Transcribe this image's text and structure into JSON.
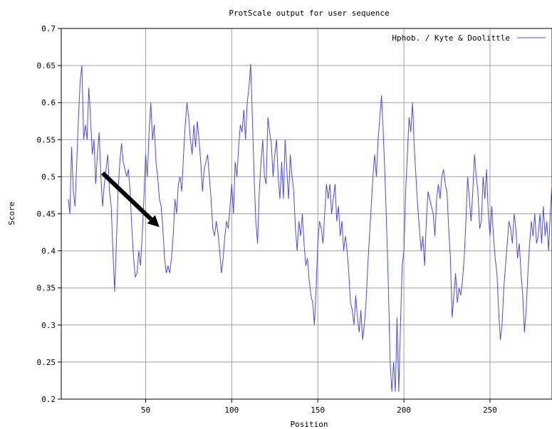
{
  "chart_data": {
    "type": "line",
    "title": "ProtScale output for user sequence",
    "xlabel": "Position",
    "ylabel": "Score",
    "xlim": [
      1,
      286
    ],
    "ylim": [
      0.2,
      0.7
    ],
    "xticks": [
      50,
      100,
      150,
      200,
      250
    ],
    "yticks": [
      0.2,
      0.25,
      0.3,
      0.35,
      0.4,
      0.45,
      0.5,
      0.55,
      0.6,
      0.65,
      0.7
    ],
    "ytick_labels": [
      "0.2",
      "0.25",
      "0.3",
      "0.35",
      "0.4",
      "0.45",
      "0.5",
      "0.55",
      "0.6",
      "0.65",
      "0.7"
    ],
    "grid": true,
    "legend_position": "top-right",
    "series": [
      {
        "name": "Hphob. / Kyte & Doolittle",
        "color": "#4a4ae8",
        "points": [
          [
            5,
            0.47
          ],
          [
            6,
            0.45
          ],
          [
            7,
            0.54
          ],
          [
            8,
            0.48
          ],
          [
            9,
            0.46
          ],
          [
            10,
            0.52
          ],
          [
            11,
            0.58
          ],
          [
            12,
            0.63
          ],
          [
            13,
            0.65
          ],
          [
            14,
            0.55
          ],
          [
            15,
            0.57
          ],
          [
            16,
            0.55
          ],
          [
            17,
            0.62
          ],
          [
            18,
            0.58
          ],
          [
            19,
            0.53
          ],
          [
            20,
            0.55
          ],
          [
            21,
            0.49
          ],
          [
            22,
            0.53
          ],
          [
            23,
            0.56
          ],
          [
            24,
            0.5
          ],
          [
            25,
            0.46
          ],
          [
            26,
            0.49
          ],
          [
            27,
            0.51
          ],
          [
            28,
            0.53
          ],
          [
            29,
            0.48
          ],
          [
            30,
            0.46
          ],
          [
            31,
            0.4
          ],
          [
            32,
            0.345
          ],
          [
            33,
            0.41
          ],
          [
            34,
            0.48
          ],
          [
            35,
            0.52
          ],
          [
            36,
            0.545
          ],
          [
            37,
            0.52
          ],
          [
            38,
            0.51
          ],
          [
            39,
            0.5
          ],
          [
            40,
            0.51
          ],
          [
            41,
            0.48
          ],
          [
            42,
            0.43
          ],
          [
            43,
            0.39
          ],
          [
            44,
            0.365
          ],
          [
            45,
            0.37
          ],
          [
            46,
            0.4
          ],
          [
            47,
            0.38
          ],
          [
            48,
            0.42
          ],
          [
            49,
            0.47
          ],
          [
            50,
            0.53
          ],
          [
            51,
            0.5
          ],
          [
            52,
            0.56
          ],
          [
            53,
            0.6
          ],
          [
            54,
            0.55
          ],
          [
            55,
            0.57
          ],
          [
            56,
            0.52
          ],
          [
            57,
            0.5
          ],
          [
            58,
            0.47
          ],
          [
            59,
            0.46
          ],
          [
            60,
            0.43
          ],
          [
            61,
            0.39
          ],
          [
            62,
            0.37
          ],
          [
            63,
            0.38
          ],
          [
            64,
            0.37
          ],
          [
            65,
            0.39
          ],
          [
            66,
            0.42
          ],
          [
            67,
            0.47
          ],
          [
            68,
            0.45
          ],
          [
            69,
            0.49
          ],
          [
            70,
            0.5
          ],
          [
            71,
            0.48
          ],
          [
            72,
            0.53
          ],
          [
            73,
            0.57
          ],
          [
            74,
            0.6
          ],
          [
            75,
            0.58
          ],
          [
            76,
            0.55
          ],
          [
            77,
            0.53
          ],
          [
            78,
            0.57
          ],
          [
            79,
            0.54
          ],
          [
            80,
            0.575
          ],
          [
            81,
            0.55
          ],
          [
            82,
            0.52
          ],
          [
            83,
            0.48
          ],
          [
            84,
            0.51
          ],
          [
            85,
            0.52
          ],
          [
            86,
            0.53
          ],
          [
            87,
            0.5
          ],
          [
            88,
            0.47
          ],
          [
            89,
            0.43
          ],
          [
            90,
            0.42
          ],
          [
            91,
            0.44
          ],
          [
            92,
            0.425
          ],
          [
            93,
            0.4
          ],
          [
            94,
            0.37
          ],
          [
            95,
            0.39
          ],
          [
            96,
            0.42
          ],
          [
            97,
            0.44
          ],
          [
            98,
            0.43
          ],
          [
            99,
            0.46
          ],
          [
            100,
            0.49
          ],
          [
            101,
            0.45
          ],
          [
            102,
            0.52
          ],
          [
            103,
            0.5
          ],
          [
            104,
            0.54
          ],
          [
            105,
            0.57
          ],
          [
            106,
            0.56
          ],
          [
            107,
            0.59
          ],
          [
            108,
            0.55
          ],
          [
            109,
            0.6
          ],
          [
            110,
            0.62
          ],
          [
            111,
            0.652
          ],
          [
            112,
            0.58
          ],
          [
            113,
            0.5
          ],
          [
            114,
            0.44
          ],
          [
            115,
            0.41
          ],
          [
            116,
            0.48
          ],
          [
            117,
            0.52
          ],
          [
            118,
            0.55
          ],
          [
            119,
            0.5
          ],
          [
            120,
            0.49
          ],
          [
            121,
            0.58
          ],
          [
            122,
            0.56
          ],
          [
            123,
            0.545
          ],
          [
            124,
            0.5
          ],
          [
            125,
            0.53
          ],
          [
            126,
            0.55
          ],
          [
            127,
            0.5
          ],
          [
            128,
            0.47
          ],
          [
            129,
            0.52
          ],
          [
            130,
            0.47
          ],
          [
            131,
            0.55
          ],
          [
            132,
            0.51
          ],
          [
            133,
            0.47
          ],
          [
            134,
            0.53
          ],
          [
            135,
            0.5
          ],
          [
            136,
            0.48
          ],
          [
            137,
            0.43
          ],
          [
            138,
            0.4
          ],
          [
            139,
            0.44
          ],
          [
            140,
            0.42
          ],
          [
            141,
            0.45
          ],
          [
            142,
            0.41
          ],
          [
            143,
            0.38
          ],
          [
            144,
            0.39
          ],
          [
            145,
            0.36
          ],
          [
            146,
            0.34
          ],
          [
            147,
            0.33
          ],
          [
            148,
            0.3
          ],
          [
            149,
            0.35
          ],
          [
            150,
            0.41
          ],
          [
            151,
            0.44
          ],
          [
            152,
            0.43
          ],
          [
            153,
            0.41
          ],
          [
            154,
            0.45
          ],
          [
            155,
            0.49
          ],
          [
            156,
            0.47
          ],
          [
            157,
            0.49
          ],
          [
            158,
            0.45
          ],
          [
            159,
            0.47
          ],
          [
            160,
            0.49
          ],
          [
            161,
            0.44
          ],
          [
            162,
            0.46
          ],
          [
            163,
            0.42
          ],
          [
            164,
            0.44
          ],
          [
            165,
            0.4
          ],
          [
            166,
            0.42
          ],
          [
            167,
            0.4
          ],
          [
            168,
            0.37
          ],
          [
            169,
            0.33
          ],
          [
            170,
            0.32
          ],
          [
            171,
            0.3
          ],
          [
            172,
            0.34
          ],
          [
            173,
            0.31
          ],
          [
            174,
            0.29
          ],
          [
            175,
            0.32
          ],
          [
            176,
            0.28
          ],
          [
            177,
            0.3
          ],
          [
            178,
            0.33
          ],
          [
            179,
            0.38
          ],
          [
            180,
            0.42
          ],
          [
            181,
            0.46
          ],
          [
            182,
            0.5
          ],
          [
            183,
            0.53
          ],
          [
            184,
            0.5
          ],
          [
            185,
            0.55
          ],
          [
            186,
            0.58
          ],
          [
            187,
            0.61
          ],
          [
            188,
            0.56
          ],
          [
            189,
            0.5
          ],
          [
            190,
            0.43
          ],
          [
            191,
            0.35
          ],
          [
            192,
            0.25
          ],
          [
            193,
            0.21
          ],
          [
            194,
            0.25
          ],
          [
            195,
            0.21
          ],
          [
            196,
            0.31
          ],
          [
            197,
            0.21
          ],
          [
            198,
            0.3
          ],
          [
            199,
            0.38
          ],
          [
            200,
            0.4
          ],
          [
            201,
            0.48
          ],
          [
            202,
            0.53
          ],
          [
            203,
            0.58
          ],
          [
            204,
            0.56
          ],
          [
            205,
            0.6
          ],
          [
            206,
            0.54
          ],
          [
            207,
            0.5
          ],
          [
            208,
            0.46
          ],
          [
            209,
            0.43
          ],
          [
            210,
            0.4
          ],
          [
            211,
            0.42
          ],
          [
            212,
            0.38
          ],
          [
            213,
            0.44
          ],
          [
            214,
            0.48
          ],
          [
            215,
            0.47
          ],
          [
            216,
            0.46
          ],
          [
            217,
            0.45
          ],
          [
            218,
            0.42
          ],
          [
            219,
            0.47
          ],
          [
            220,
            0.49
          ],
          [
            221,
            0.47
          ],
          [
            222,
            0.5
          ],
          [
            223,
            0.51
          ],
          [
            224,
            0.49
          ],
          [
            225,
            0.48
          ],
          [
            226,
            0.43
          ],
          [
            227,
            0.39
          ],
          [
            228,
            0.31
          ],
          [
            229,
            0.34
          ],
          [
            230,
            0.37
          ],
          [
            231,
            0.33
          ],
          [
            232,
            0.35
          ],
          [
            233,
            0.34
          ],
          [
            234,
            0.36
          ],
          [
            235,
            0.39
          ],
          [
            236,
            0.44
          ],
          [
            237,
            0.5
          ],
          [
            238,
            0.47
          ],
          [
            239,
            0.44
          ],
          [
            240,
            0.48
          ],
          [
            241,
            0.53
          ],
          [
            242,
            0.5
          ],
          [
            243,
            0.48
          ],
          [
            244,
            0.43
          ],
          [
            245,
            0.44
          ],
          [
            246,
            0.5
          ],
          [
            247,
            0.47
          ],
          [
            248,
            0.51
          ],
          [
            249,
            0.45
          ],
          [
            250,
            0.42
          ],
          [
            251,
            0.46
          ],
          [
            252,
            0.42
          ],
          [
            253,
            0.39
          ],
          [
            254,
            0.37
          ],
          [
            255,
            0.32
          ],
          [
            256,
            0.28
          ],
          [
            257,
            0.3
          ],
          [
            258,
            0.35
          ],
          [
            259,
            0.38
          ],
          [
            260,
            0.41
          ],
          [
            261,
            0.44
          ],
          [
            262,
            0.43
          ],
          [
            263,
            0.41
          ],
          [
            264,
            0.45
          ],
          [
            265,
            0.43
          ],
          [
            266,
            0.39
          ],
          [
            267,
            0.41
          ],
          [
            268,
            0.37
          ],
          [
            269,
            0.34
          ],
          [
            270,
            0.29
          ],
          [
            271,
            0.32
          ],
          [
            272,
            0.37
          ],
          [
            273,
            0.41
          ],
          [
            274,
            0.44
          ],
          [
            275,
            0.42
          ],
          [
            276,
            0.45
          ],
          [
            277,
            0.41
          ],
          [
            278,
            0.42
          ],
          [
            279,
            0.45
          ],
          [
            280,
            0.41
          ],
          [
            281,
            0.46
          ],
          [
            282,
            0.42
          ],
          [
            283,
            0.44
          ],
          [
            284,
            0.4
          ],
          [
            285,
            0.45
          ],
          [
            286,
            0.49
          ]
        ]
      }
    ],
    "annotation": {
      "type": "arrow",
      "color": "#000000",
      "from": [
        25,
        0.505
      ],
      "to": [
        58,
        0.432
      ]
    }
  }
}
